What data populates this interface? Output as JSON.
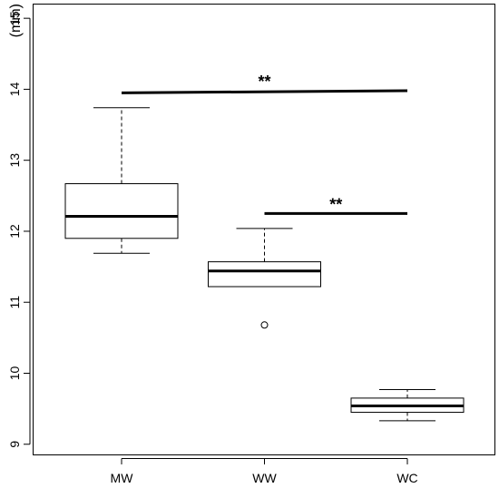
{
  "chart_data": {
    "type": "box",
    "title": "",
    "xlabel": "",
    "ylabel": "(mm)",
    "ylim": [
      8.85,
      15.2
    ],
    "yticks": [
      "9",
      "10",
      "11",
      "12",
      "13",
      "14",
      "15"
    ],
    "categories": [
      "MW",
      "WW",
      "WC"
    ],
    "boxes": [
      {
        "label": "MW",
        "whisker_low": 11.69,
        "q1": 11.9,
        "median": 12.21,
        "q3": 12.67,
        "whisker_high": 13.74,
        "outliers": []
      },
      {
        "label": "WW",
        "whisker_low": 11.22,
        "q1": 11.22,
        "median": 11.44,
        "q3": 11.57,
        "whisker_high": 12.04,
        "outliers": [
          10.68
        ]
      },
      {
        "label": "WC",
        "whisker_low": 9.33,
        "q1": 9.45,
        "median": 9.54,
        "q3": 9.65,
        "whisker_high": 9.77,
        "outliers": []
      }
    ],
    "annotations": [
      {
        "text": "**",
        "from": "MW",
        "to": "WC",
        "y_start": 13.95,
        "y_end": 13.98
      },
      {
        "text": "**",
        "from": "WW",
        "to": "WC",
        "y_start": 12.25,
        "y_end": 12.25
      }
    ],
    "grid": false,
    "legend": "none"
  }
}
